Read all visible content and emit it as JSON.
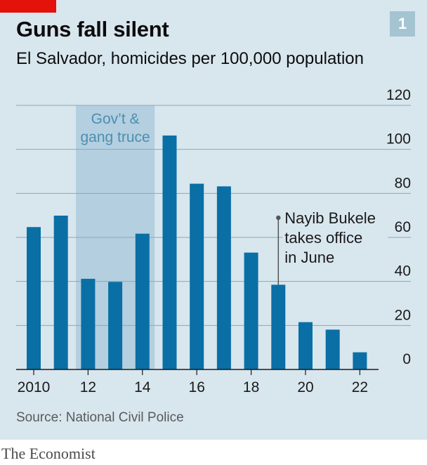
{
  "header": {
    "title": "Guns fall silent",
    "subtitle": "El Salvador, homicides per 100,000 population",
    "chart_number": "1"
  },
  "source": "Source: National Civil Police",
  "footer": "The Economist",
  "colors": {
    "bar": "#0a6fa5",
    "background": "#d8e6ee",
    "shade": "#b4cfdf",
    "grid": "#8aa8b8",
    "shade_label": "#4b8fb2",
    "accent": "#e3120b"
  },
  "chart_data": {
    "type": "bar",
    "title": "Guns fall silent",
    "subtitle": "El Salvador, homicides per 100,000 population",
    "categories": [
      "2010",
      "2011",
      "2012",
      "2013",
      "2014",
      "2015",
      "2016",
      "2017",
      "2018",
      "2019",
      "2020",
      "2021",
      "2022"
    ],
    "values": [
      64.7,
      69.9,
      41.2,
      39.8,
      61.7,
      106.3,
      84.4,
      83.2,
      53.1,
      38.5,
      21.5,
      18.1,
      7.8
    ],
    "x_tick_labels": [
      "2010",
      "12",
      "14",
      "16",
      "18",
      "20",
      "22"
    ],
    "x_tick_years": [
      "2010",
      "2012",
      "2014",
      "2016",
      "2018",
      "2020",
      "2022"
    ],
    "y_ticks": [
      0,
      20,
      40,
      60,
      80,
      100,
      120
    ],
    "ylim": [
      0,
      120
    ],
    "y_axis_side": "right",
    "grid": true,
    "shaded_region": {
      "from": "2012",
      "to": "2014",
      "label": [
        "Gov’t &",
        "gang truce"
      ]
    },
    "annotation": {
      "year": "2019",
      "lines": [
        "Nayib Bukele",
        "takes office",
        "in June"
      ]
    }
  }
}
